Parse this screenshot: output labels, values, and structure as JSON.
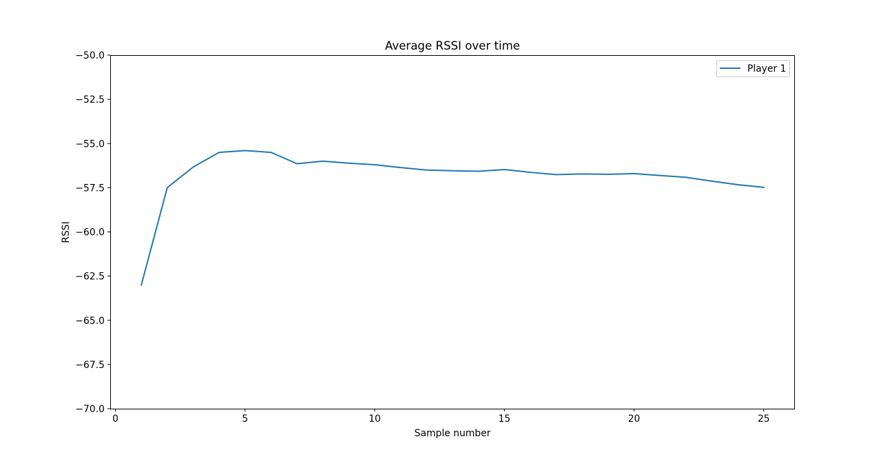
{
  "chart_data": {
    "type": "line",
    "title": "Average RSSI over time",
    "xlabel": "Sample number",
    "ylabel": "RSSI",
    "xlim": [
      -0.2,
      26.2
    ],
    "ylim": [
      -70.0,
      -50.0
    ],
    "xticks": [
      0,
      5,
      10,
      15,
      20,
      25
    ],
    "yticks": [
      -50.0,
      -52.5,
      -55.0,
      -57.5,
      -60.0,
      -62.5,
      -65.0,
      -67.5,
      -70.0
    ],
    "ytick_labels": [
      "−50.0",
      "−52.5",
      "−55.0",
      "−57.5",
      "−60.0",
      "−62.5",
      "−65.0",
      "−67.5",
      "−70.0"
    ],
    "xtick_labels": [
      "0",
      "5",
      "10",
      "15",
      "20",
      "25"
    ],
    "grid": false,
    "legend_position": "top-right",
    "series": [
      {
        "name": "Player 1",
        "color": "#1f77b4",
        "x": [
          1,
          2,
          3,
          4,
          5,
          6,
          7,
          8,
          9,
          10,
          11,
          12,
          13,
          14,
          15,
          16,
          17,
          18,
          19,
          20,
          21,
          22,
          23,
          24,
          25
        ],
        "values": [
          -63.0,
          -57.5,
          -56.33,
          -55.5,
          -55.4,
          -55.5,
          -56.14,
          -56.0,
          -56.11,
          -56.2,
          -56.36,
          -56.5,
          -56.54,
          -56.57,
          -56.47,
          -56.63,
          -56.76,
          -56.72,
          -56.74,
          -56.7,
          -56.81,
          -56.91,
          -57.13,
          -57.33,
          -57.48
        ]
      }
    ]
  }
}
